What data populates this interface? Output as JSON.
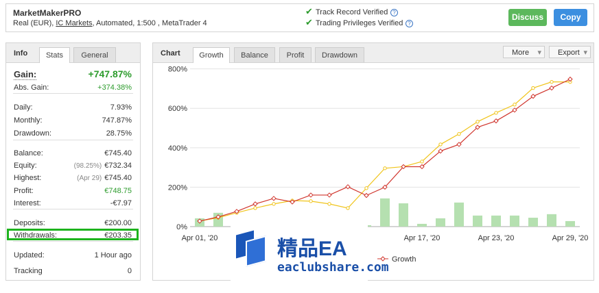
{
  "header": {
    "title": "MarketMakerPRO",
    "subtitle": [
      "Real (EUR), ",
      "IC Markets",
      ", Automated, 1:500 , MetaTrader 4"
    ],
    "verified": [
      "Track Record Verified",
      "Trading Privileges Verified"
    ],
    "buttons": [
      "Discuss",
      "Copy"
    ]
  },
  "info_tabs": [
    "Info",
    "Stats",
    "General"
  ],
  "gain": {
    "label": "Gain:",
    "value": "+747.87%"
  },
  "stats": [
    [
      {
        "label": "Abs. Gain:",
        "value": "+374.38%"
      }
    ],
    [
      {
        "label": "Daily:",
        "value": "7.93%"
      },
      {
        "label": "Monthly:",
        "value": "747.87%"
      },
      {
        "label": "Drawdown:",
        "value": "28.75%"
      }
    ],
    [
      {
        "label": "Balance:",
        "value": "€745.40"
      },
      {
        "label": "Equity:",
        "note": "(98.25%)",
        "value": "€732.34"
      },
      {
        "label": "Highest:",
        "note": "(Apr 29)",
        "value": "€745.40"
      },
      {
        "label": "Profit:",
        "value": "€748.75"
      },
      {
        "label": "Interest:",
        "value": "-€7.97"
      }
    ],
    [
      {
        "label": "Deposits:",
        "value": "€200.00"
      },
      {
        "label": "Withdrawals:",
        "value": "€203.35"
      }
    ],
    [
      {
        "label": "Updated:",
        "value": "1 Hour ago"
      },
      {
        "label": "Tracking",
        "value": "0"
      }
    ]
  ],
  "chart_tabs": [
    "Chart",
    "Growth",
    "Balance",
    "Profit",
    "Drawdown"
  ],
  "chart_menus": [
    "More",
    "Export"
  ],
  "chart_data": {
    "type": "line",
    "categories": [
      "Apr 01, '20",
      null,
      null,
      null,
      null,
      null,
      null,
      null,
      null,
      null,
      null,
      null,
      "Apr 17, '20",
      null,
      null,
      null,
      "Apr 23, '20",
      null,
      null,
      null,
      "Apr 29, '20"
    ],
    "series": [
      {
        "type": "bar",
        "color": "#b5e0b0",
        "values": [
          42,
          70,
          null,
          null,
          null,
          null,
          null,
          null,
          null,
          7,
          143,
          118,
          14,
          42,
          122,
          56,
          56,
          56,
          45,
          63,
          28
        ]
      },
      {
        "color": "#f0c419",
        "values": [
          28,
          45,
          70,
          94,
          115,
          132,
          129,
          115,
          94,
          195,
          296,
          304,
          330,
          417,
          470,
          532,
          577,
          619,
          703,
          734,
          734
        ]
      },
      {
        "name": "Growth",
        "color": "#d0342c",
        "values": [
          28,
          49,
          77,
          115,
          143,
          125,
          160,
          160,
          202,
          158,
          200,
          304,
          304,
          383,
          417,
          504,
          536,
          591,
          661,
          703,
          748
        ]
      }
    ],
    "ylim": [
      0,
      830
    ],
    "yticks": [
      {
        "value": 0,
        "label": "0%"
      },
      {
        "value": 200,
        "label": "200%"
      },
      {
        "value": 400,
        "label": "400%"
      },
      {
        "value": 600,
        "label": "600%"
      },
      {
        "value": 800,
        "label": "800%"
      }
    ],
    "grid": true
  },
  "watermark": [
    "精品EA",
    "eaclubshare.com"
  ]
}
